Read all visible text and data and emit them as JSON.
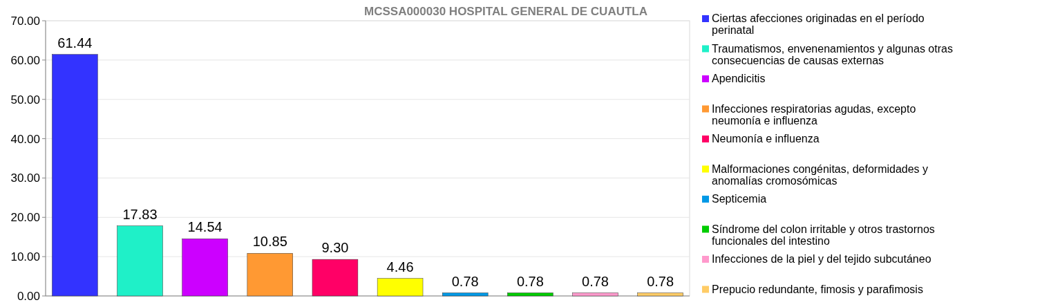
{
  "chart_data": {
    "type": "bar",
    "title": "MCSSA000030 HOSPITAL GENERAL DE CUAUTLA",
    "categories": [
      null,
      null,
      null,
      null,
      null,
      null,
      null,
      null,
      null,
      null
    ],
    "series": [
      {
        "name": "Ciertas afecciones originadas en el período perinatal",
        "color": "#3333ff",
        "values": [
          61.44,
          null,
          null,
          null,
          null,
          null,
          null,
          null,
          null,
          null
        ]
      },
      {
        "name": "Traumatismos, envenenamientos y algunas otras consecuencias de causas externas",
        "color": "#1ff0c8",
        "values": [
          null,
          17.83,
          null,
          null,
          null,
          null,
          null,
          null,
          null,
          null
        ]
      },
      {
        "name": "Apendicitis",
        "color": "#cc00ff",
        "values": [
          null,
          null,
          14.54,
          null,
          null,
          null,
          null,
          null,
          null,
          null
        ]
      },
      {
        "name": "Infecciones respiratorias agudas, excepto neumonía e influenza",
        "color": "#ff9933",
        "values": [
          null,
          null,
          null,
          10.85,
          null,
          null,
          null,
          null,
          null,
          null
        ]
      },
      {
        "name": "Neumonía e influenza",
        "color": "#ff0066",
        "values": [
          null,
          null,
          null,
          null,
          9.3,
          null,
          null,
          null,
          null,
          null
        ],
        "value_labels": [
          null,
          null,
          null,
          null,
          "9.30",
          null,
          null,
          null,
          null,
          null
        ]
      },
      {
        "name": "Malformaciones congénitas, deformidades y anomalías cromosómicas",
        "color": "#ffff00",
        "values": [
          null,
          null,
          null,
          null,
          null,
          4.46,
          null,
          null,
          null,
          null
        ]
      },
      {
        "name": "Septicemia",
        "color": "#0099e6",
        "values": [
          null,
          null,
          null,
          null,
          null,
          null,
          0.78,
          null,
          null,
          null
        ]
      },
      {
        "name": "Síndrome del colon irritable y otros trastornos funcionales del intestino",
        "color": "#00cc00",
        "values": [
          null,
          null,
          null,
          null,
          null,
          null,
          null,
          0.78,
          null,
          null
        ]
      },
      {
        "name": "Infecciones de la piel y del tejido subcutáneo",
        "color": "#ff99cc",
        "values": [
          null,
          null,
          null,
          null,
          null,
          null,
          null,
          null,
          0.78,
          null
        ]
      },
      {
        "name": "Prepucio redundante, fimosis y parafimosis",
        "color": "#ffcc66",
        "values": [
          null,
          null,
          null,
          null,
          null,
          null,
          null,
          null,
          null,
          0.78
        ]
      }
    ],
    "ylim": [
      0,
      70
    ],
    "yticks": [
      {
        "value": 0,
        "label": "0.00"
      },
      {
        "value": 10,
        "label": "10.00"
      },
      {
        "value": 20,
        "label": "20.00"
      },
      {
        "value": 30,
        "label": "30.00"
      },
      {
        "value": 40,
        "label": "40.00"
      },
      {
        "value": 50,
        "label": "50.00"
      },
      {
        "value": 60,
        "label": "60.00"
      },
      {
        "value": 70,
        "label": "70.00"
      }
    ],
    "grid": "y",
    "legend": "right",
    "data_labels": true
  }
}
